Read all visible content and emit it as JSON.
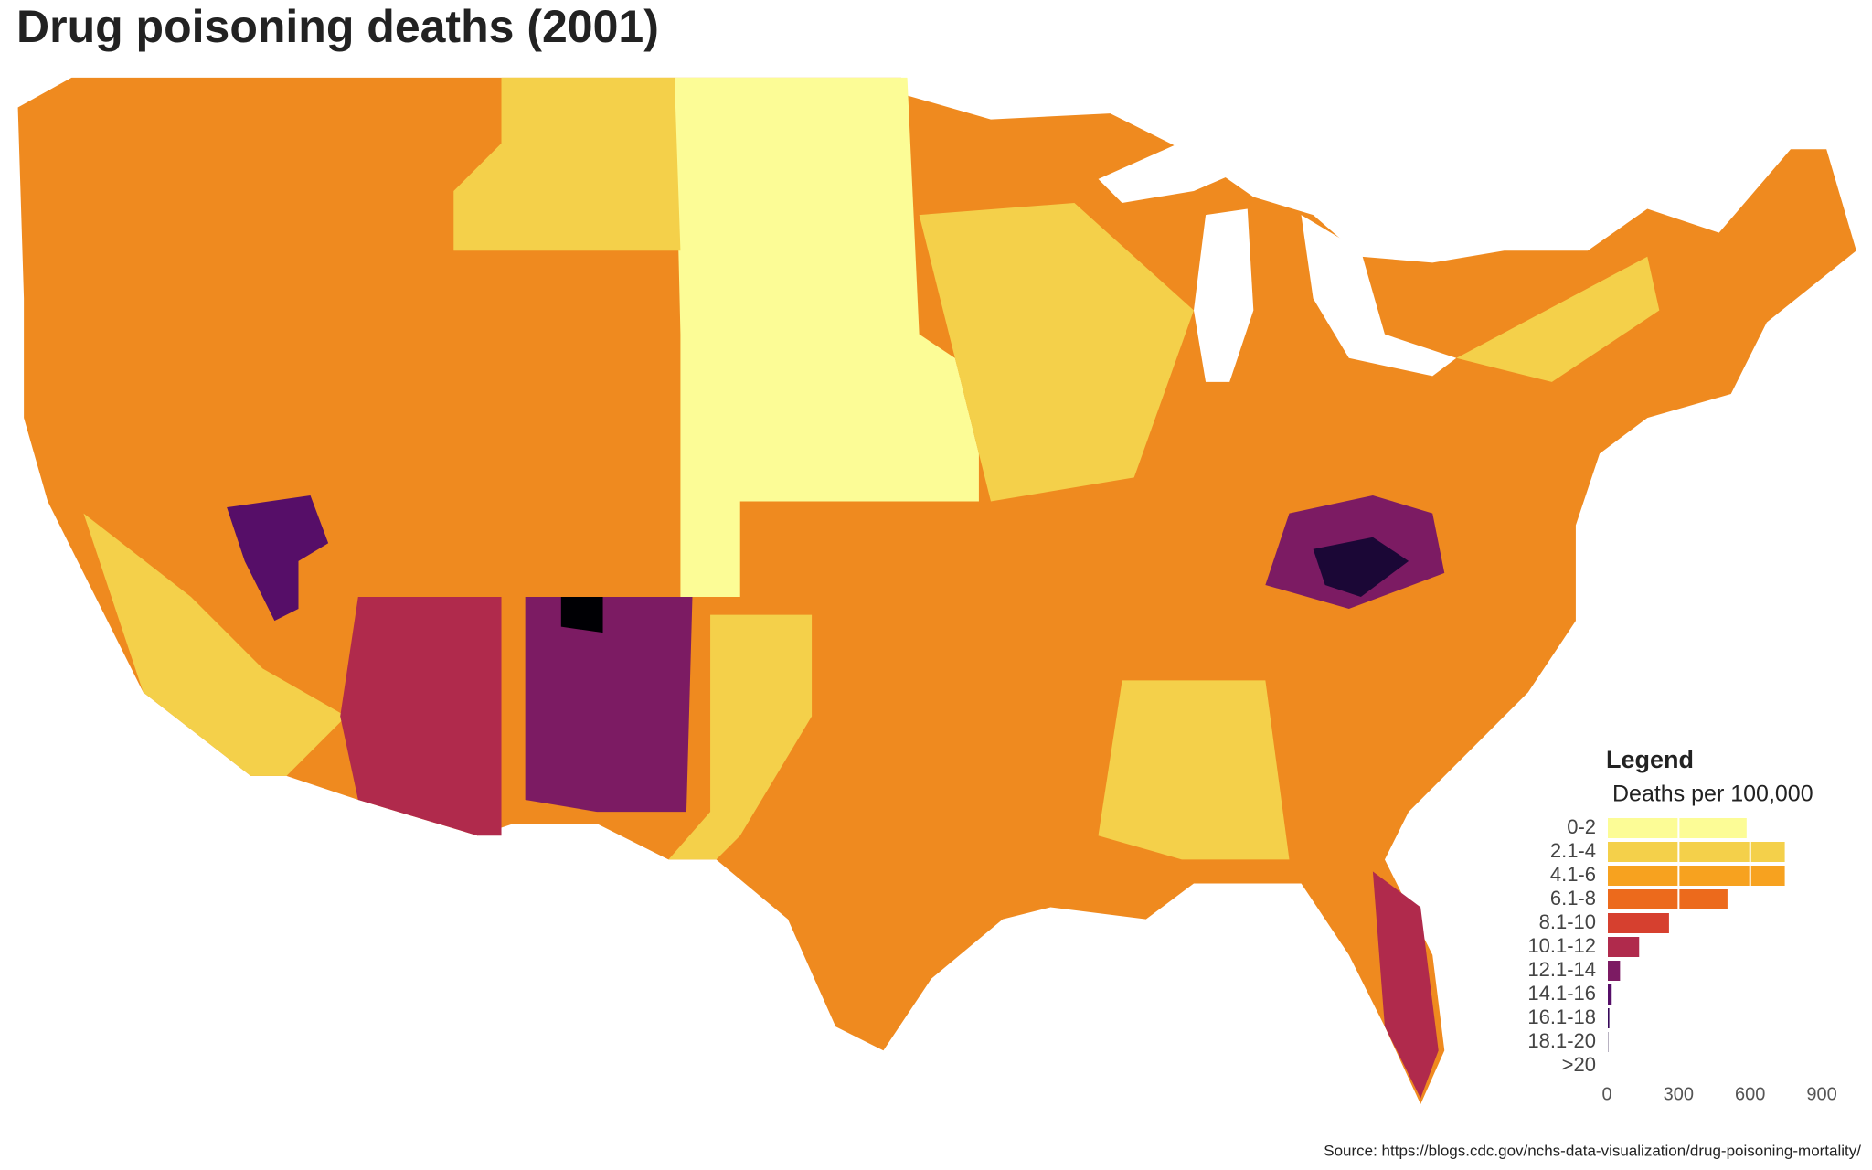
{
  "chart_data": {
    "type": "bar",
    "title": "Drug poisoning deaths (2001)",
    "legend_title": "Legend",
    "subtitle": "Deaths per 100,000",
    "categories": [
      "0-2",
      "2.1-4",
      "4.1-6",
      "6.1-8",
      "8.1-10",
      "10.1-12",
      "12.1-14",
      "14.1-16",
      "16.1-18",
      "18.1-20",
      ">20"
    ],
    "values": [
      585,
      745,
      745,
      505,
      260,
      135,
      55,
      20,
      10,
      5,
      3
    ],
    "colors": [
      "#fcfc96",
      "#f4d04a",
      "#f7a21f",
      "#ec6a1c",
      "#d6402f",
      "#b02a4c",
      "#7c1b63",
      "#560e68",
      "#36095a",
      "#1b0736",
      "#000004"
    ],
    "xlim": [
      0,
      960
    ],
    "xticks": [
      0,
      300,
      600,
      900
    ],
    "source": "Source: https://blogs.cdc.gov/nchs-data-visualization/drug-poisoning-mortality/"
  }
}
